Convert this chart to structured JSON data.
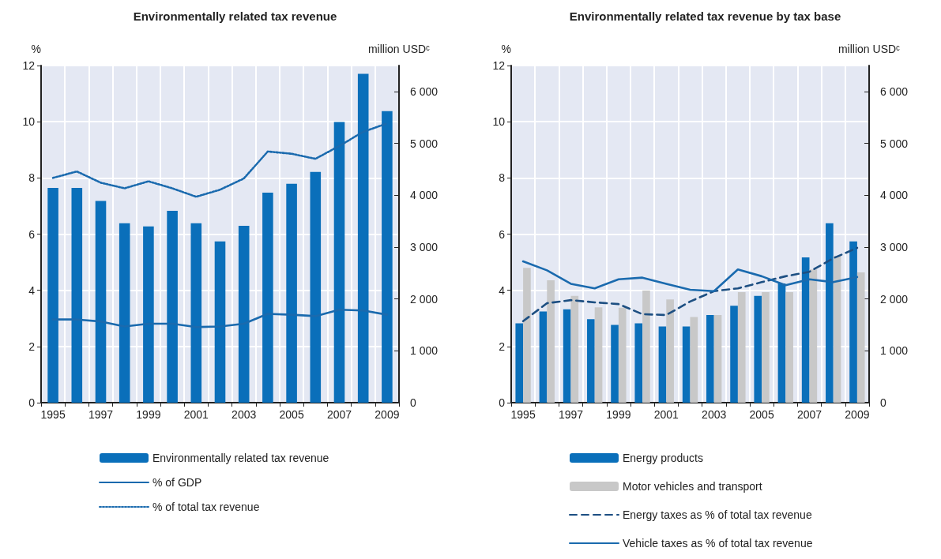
{
  "chart_data": [
    {
      "type": "bar",
      "title": "Environmentally related tax revenue",
      "ylabel": "%",
      "y2label": "million USDᶜ",
      "categories": [
        "1995",
        null,
        "1997",
        null,
        "1999",
        null,
        "2001",
        null,
        "2003",
        null,
        "2005",
        null,
        "2007",
        null,
        "2009"
      ],
      "series": [
        {
          "name": "Environmentally related tax revenue",
          "axis": "y2",
          "color": "#0a6fba",
          "values": [
            4140,
            4140,
            3890,
            3460,
            3400,
            3700,
            3460,
            3110,
            3410,
            4050,
            4220,
            4450,
            5410,
            6340,
            5620
          ]
        },
        {
          "name": "% of GDP",
          "type": "line",
          "line_style": "solid",
          "color": "#1a6aae",
          "values": [
            2.96,
            2.96,
            2.89,
            2.71,
            2.81,
            2.81,
            2.69,
            2.71,
            2.81,
            3.16,
            3.13,
            3.08,
            3.31,
            3.28,
            3.13
          ]
        },
        {
          "name": "% of total tax revenue",
          "type": "line",
          "line_style": "dotted",
          "color": "#1a6aae",
          "values": [
            8.0,
            8.23,
            7.83,
            7.63,
            7.88,
            7.63,
            7.33,
            7.58,
            7.98,
            8.94,
            8.86,
            8.68,
            9.14,
            9.64,
            9.94
          ]
        }
      ],
      "ylim": [
        0,
        12
      ],
      "yticks": [
        0,
        2,
        4,
        6,
        8,
        10,
        12
      ],
      "y2lim": [
        0,
        6500
      ],
      "y2ticks": [
        0,
        {
          "value": 1000,
          "label": "1 000"
        },
        {
          "value": 2000,
          "label": "2 000"
        },
        {
          "value": 3000,
          "label": "3 000"
        },
        {
          "value": 4000,
          "label": "4 000"
        },
        {
          "value": 5000,
          "label": "5 000"
        },
        {
          "value": 6000,
          "label": "6 000"
        }
      ],
      "grid": true,
      "legend": "bottom",
      "marker": "none"
    },
    {
      "type": "bar",
      "title": "Environmentally related tax revenue by tax base",
      "ylabel": "%",
      "y2label": "million USDᶜ",
      "categories": [
        "1995",
        null,
        "1997",
        null,
        "1999",
        null,
        "2001",
        null,
        "2003",
        null,
        "2005",
        null,
        "2007",
        null,
        "2009"
      ],
      "series": [
        {
          "name": "Energy products",
          "axis": "y2",
          "color": "#0a6fba",
          "values": [
            1530,
            1760,
            1800,
            1610,
            1500,
            1530,
            1470,
            1470,
            1690,
            1870,
            2060,
            2300,
            2800,
            3460,
            3110
          ]
        },
        {
          "name": "Motor vehicles and transport",
          "axis": "y2",
          "color": "#c8c8c8",
          "values": [
            2600,
            2360,
            2060,
            1840,
            1830,
            2160,
            1990,
            1650,
            1690,
            2130,
            2130,
            2130,
            2570,
            2830,
            2510
          ]
        },
        {
          "name": "Energy taxes as % of total tax revenue",
          "type": "line",
          "line_style": "dashed",
          "color": "#1d4f82",
          "values": [
            2.9,
            3.54,
            3.65,
            3.57,
            3.51,
            3.15,
            3.12,
            3.6,
            3.97,
            4.07,
            4.29,
            4.5,
            4.66,
            5.14,
            5.51
          ]
        },
        {
          "name": "Vehicle taxes as % of total tax revenue",
          "type": "line",
          "line_style": "solid",
          "color": "#1a6aae",
          "values": [
            5.03,
            4.71,
            4.23,
            4.07,
            4.39,
            4.45,
            4.23,
            4.02,
            3.97,
            4.74,
            4.5,
            4.18,
            4.39,
            4.29,
            4.47
          ]
        }
      ],
      "ylim": [
        0,
        12
      ],
      "yticks": [
        0,
        2,
        4,
        6,
        8,
        10,
        12
      ],
      "y2lim": [
        0,
        6500
      ],
      "y2ticks": [
        0,
        {
          "value": 1000,
          "label": "1 000"
        },
        {
          "value": 2000,
          "label": "2 000"
        },
        {
          "value": 3000,
          "label": "3 000"
        },
        {
          "value": 4000,
          "label": "4 000"
        },
        {
          "value": 5000,
          "label": "5 000"
        },
        {
          "value": 6000,
          "label": "6 000"
        }
      ],
      "grid": true,
      "legend": "bottom",
      "marker": "none"
    }
  ]
}
